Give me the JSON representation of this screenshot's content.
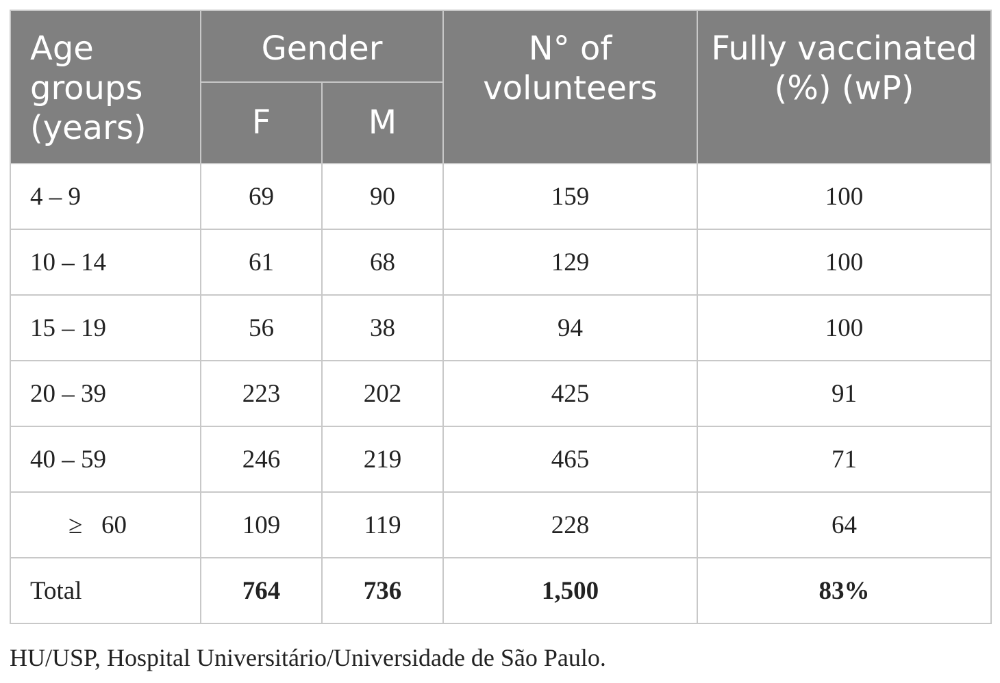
{
  "table": {
    "headers": {
      "age_groups": "Age groups (years)",
      "gender": "Gender",
      "female": "F",
      "male": "M",
      "volunteers": "N° of volunteers",
      "fully_vaccinated": "Fully vaccinated (%) (wP)"
    },
    "rows": [
      {
        "age": "4 – 9",
        "f": "69",
        "m": "90",
        "volunteers": "159",
        "vaccinated": "100"
      },
      {
        "age": "10 – 14",
        "f": "61",
        "m": "68",
        "volunteers": "129",
        "vaccinated": "100"
      },
      {
        "age": "15 – 19",
        "f": "56",
        "m": "38",
        "volunteers": "94",
        "vaccinated": "100"
      },
      {
        "age": "20 – 39",
        "f": "223",
        "m": "202",
        "volunteers": "425",
        "vaccinated": "91"
      },
      {
        "age": "40 – 59",
        "f": "246",
        "m": "219",
        "volunteers": "465",
        "vaccinated": "71"
      },
      {
        "age": "≥   60",
        "f": "109",
        "m": "119",
        "volunteers": "228",
        "vaccinated": "64"
      }
    ],
    "total": {
      "label": "Total",
      "f": "764",
      "m": "736",
      "volunteers": "1,500",
      "vaccinated": "83%"
    }
  },
  "footnote": "HU/USP, Hospital Universitário/Universidade de São Paulo."
}
